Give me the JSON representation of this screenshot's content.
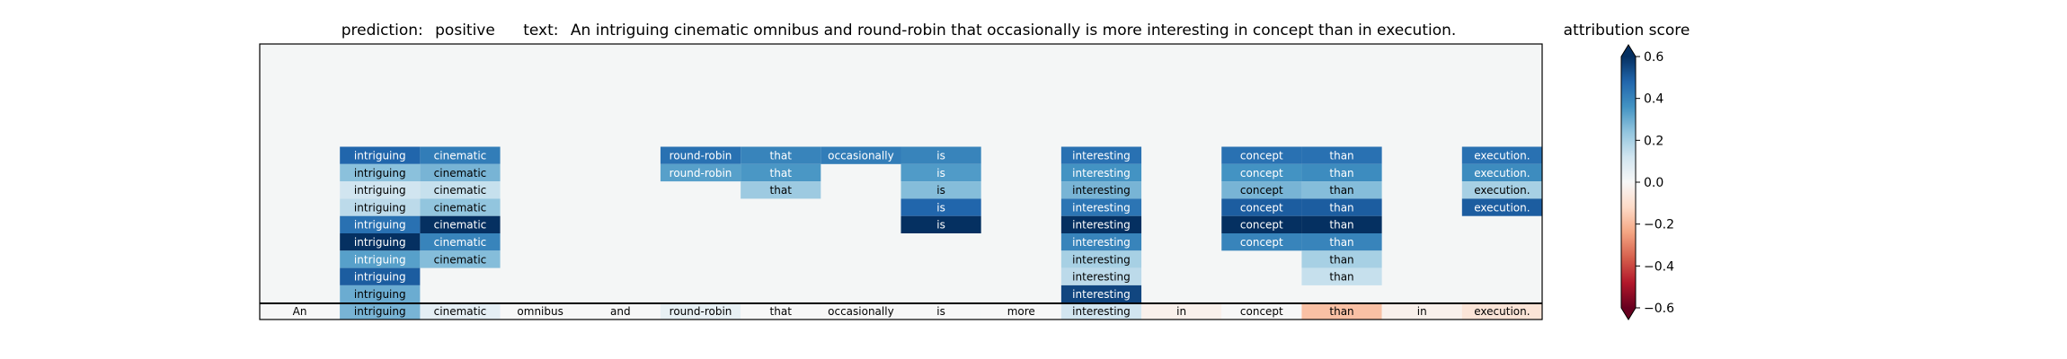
{
  "header": {
    "prediction_label": "prediction:",
    "prediction_value": "positive",
    "text_label": "text:",
    "text_value": "An intriguing cinematic omnibus and round-robin that occasionally is more interesting in concept than in execution."
  },
  "colorbar": {
    "title": "attribution score",
    "ticks": [
      "0.6",
      "0.4",
      "0.2",
      "0.0",
      "−0.2",
      "−0.4",
      "−0.6"
    ],
    "tick_values": [
      0.6,
      0.4,
      0.2,
      0.0,
      -0.2,
      -0.4,
      -0.6
    ],
    "range": [
      -0.6,
      0.6
    ],
    "colormap": "RdBu"
  },
  "colors": {
    "panel_background": "#f4f6f6",
    "frame": "#000000"
  },
  "chart_data": {
    "type": "heatmap",
    "tokens": [
      "An",
      "intriguing",
      "cinematic",
      "omnibus",
      "and",
      "round-robin",
      "that",
      "occasionally",
      "is",
      "more",
      "interesting",
      "in",
      "concept",
      "than",
      "in",
      "execution."
    ],
    "token_scores": [
      0.0,
      0.28,
      0.06,
      0.0,
      0.0,
      0.05,
      0.0,
      0.0,
      0.0,
      0.0,
      0.12,
      -0.03,
      0.0,
      -0.18,
      -0.03,
      -0.08
    ],
    "stacks": [
      {
        "token_index": 1,
        "word": "intriguing",
        "values": [
          0.48,
          0.25,
          0.12,
          0.16,
          0.45,
          0.6,
          0.33,
          0.5,
          0.3,
          0.35
        ]
      },
      {
        "token_index": 2,
        "word": "cinematic",
        "values": [
          0.42,
          0.28,
          0.14,
          0.24,
          0.62,
          0.4,
          0.26
        ]
      },
      {
        "token_index": 5,
        "word": "round-robin",
        "values": [
          0.45,
          0.33
        ]
      },
      {
        "token_index": 6,
        "word": "that",
        "values": [
          0.4,
          0.35,
          0.22
        ]
      },
      {
        "token_index": 7,
        "word": "occasionally",
        "values": [
          0.42
        ]
      },
      {
        "token_index": 8,
        "word": "is",
        "values": [
          0.4,
          0.34,
          0.26,
          0.48,
          0.62
        ]
      },
      {
        "token_index": 10,
        "word": "interesting",
        "values": [
          0.45,
          0.36,
          0.28,
          0.44,
          0.62,
          0.4,
          0.2,
          0.16,
          0.55
        ]
      },
      {
        "token_index": 12,
        "word": "concept",
        "values": [
          0.45,
          0.36,
          0.28,
          0.5,
          0.62,
          0.4
        ]
      },
      {
        "token_index": 13,
        "word": "than",
        "values": [
          0.45,
          0.38,
          0.26,
          0.5,
          0.62,
          0.4,
          0.2,
          0.14
        ]
      },
      {
        "token_index": 15,
        "word": "execution.",
        "values": [
          0.45,
          0.38,
          0.2,
          0.5
        ]
      }
    ]
  }
}
